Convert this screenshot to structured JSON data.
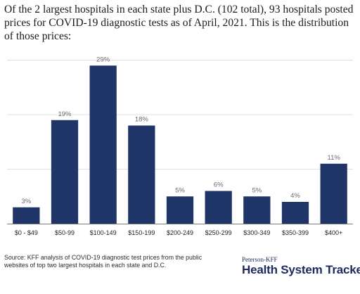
{
  "title": "Of the 2 largest hospitals in each state plus D.C. (102 total), 93 hospitals posted prices for COVID-19 diagnostic tests as of April, 2021. This is the distribution of those prices:",
  "source": "Source: KFF analysis of COVID-19 diagnostic test prices from the public websites of top two largest hospitals in each state and D.C.",
  "brand": {
    "small": "Peterson-KFF",
    "large": "Health System Tracker"
  },
  "colors": {
    "bar": "#1f3467",
    "grid": "#e1e1e1",
    "axis": "#7a7a7a",
    "label": "#6b6b6b"
  },
  "chart_data": {
    "type": "bar",
    "categories": [
      "$0 - $49",
      "$50-99",
      "$100-149",
      "$150-199",
      "$200-249",
      "$250-299",
      "$300-349",
      "$350-399",
      "$400+"
    ],
    "values": [
      3,
      19,
      29,
      18,
      5,
      6,
      5,
      4,
      11
    ],
    "value_labels": [
      "3%",
      "19%",
      "29%",
      "18%",
      "5%",
      "6%",
      "5%",
      "4%",
      "11%"
    ],
    "ylim": [
      0,
      32
    ],
    "grid": true,
    "gridlines": [
      0,
      10,
      20,
      30
    ],
    "y_tick_labels_shown": false
  }
}
